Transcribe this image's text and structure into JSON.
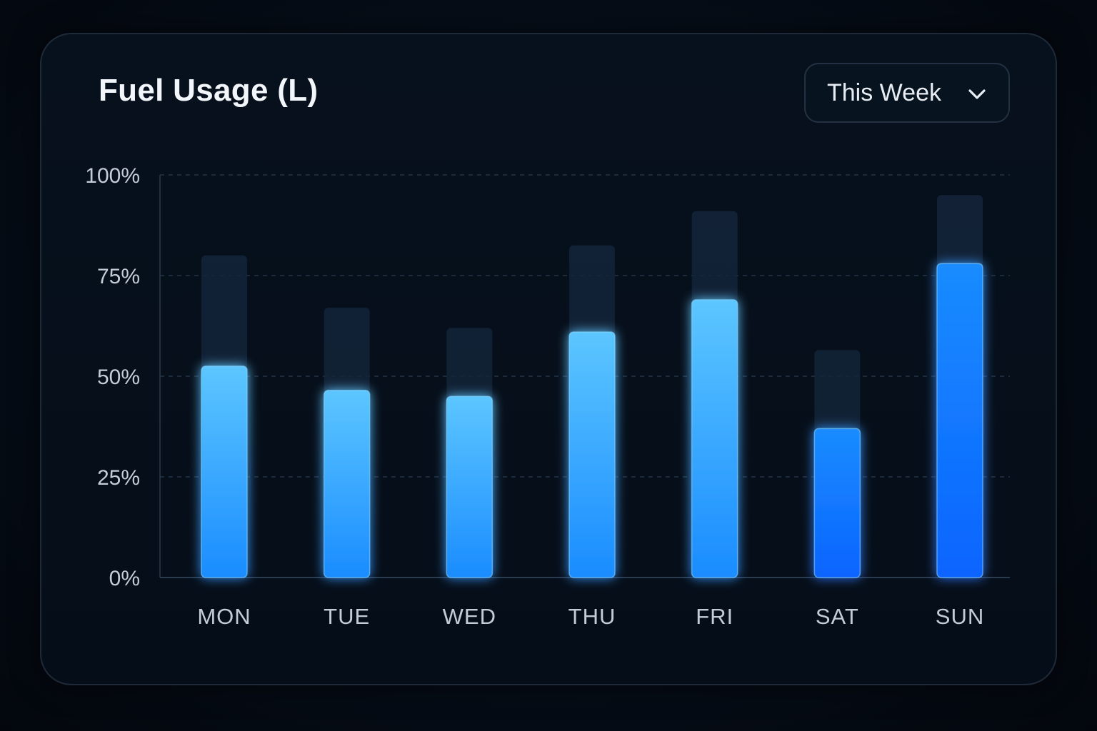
{
  "card": {
    "title": "Fuel Usage (L)",
    "period": {
      "selected": "This Week",
      "icon": "chevron-down-icon"
    }
  },
  "colors": {
    "background": "#050b14",
    "bar_light": "#5cc6ff",
    "bar_dark": "#0a64ff",
    "track": "#14253a",
    "grid": "#2a3a4e",
    "tick_text": "#c4ccd6"
  },
  "chart_data": {
    "type": "bar",
    "categories": [
      "MON",
      "TUE",
      "WED",
      "THU",
      "FRI",
      "SAT",
      "SUN"
    ],
    "series": [
      {
        "values": [
          52.5,
          46.5,
          45,
          61,
          69,
          37,
          78
        ]
      },
      {
        "values": [
          80,
          67,
          62,
          82.5,
          91,
          56.5,
          95
        ]
      }
    ],
    "y_ticks": [
      "0%",
      "25%",
      "50%",
      "75%",
      "100%"
    ],
    "ylim": [
      0,
      100
    ],
    "grid": true,
    "grid_style": "dashed"
  }
}
